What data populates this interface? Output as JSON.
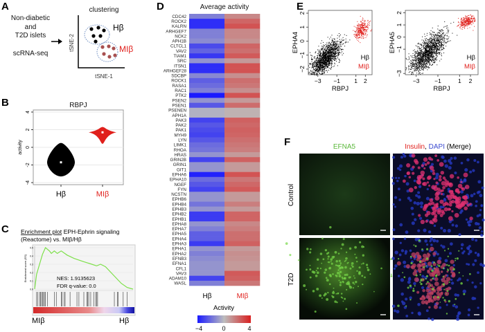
{
  "panels": {
    "A": "A",
    "B": "B",
    "C": "C",
    "D": "D",
    "E": "E",
    "F": "F"
  },
  "colors": {
    "hbeta": "#000000",
    "mibeta": "#e0201c",
    "low": "#1a1aff",
    "mid": "#bdbdbd",
    "high": "#d93030",
    "es_line": "#7de04a"
  },
  "panelA": {
    "input_text_1": "Non-diabetic",
    "input_text_2": "and",
    "input_text_3": "T2D islets",
    "method": "scRNA-seq",
    "title": "clustering",
    "xlabel": "tSNE-1",
    "ylabel": "tSNE-2",
    "cluster_1": "Hβ",
    "cluster_2": "MIβ"
  },
  "chart_data": [
    {
      "id": "B",
      "type": "violin",
      "title": "RBPJ",
      "ylabel": "activity",
      "categories": [
        "Hβ",
        "MIβ"
      ],
      "ylim": [
        -4,
        4
      ],
      "yticks": [
        "-4",
        "-2",
        "0",
        "2",
        "4"
      ],
      "grid": true,
      "violins": [
        {
          "name": "Hβ",
          "min": -3.3,
          "max": 0.5,
          "median": -1.7
        },
        {
          "name": "MIβ",
          "min": 0.4,
          "max": 2.3,
          "median": 1.7
        }
      ]
    },
    {
      "id": "C",
      "type": "line",
      "title_underlined": "Enrichment plot",
      "title_rest": ": EPH-Ephrin signaling",
      "title_line2": "(Reactome) vs. MIβ/Hβ",
      "ylabel": "Enrichment score (ES)",
      "yticks": [
        "0.0",
        "0.1",
        "0.2",
        "0.3",
        "0.4",
        "0.5"
      ],
      "ylim": [
        0,
        0.5
      ],
      "x_left_label": "MIβ",
      "x_right_label": "Hβ",
      "nes": "NES: 1.9135623",
      "fdr": "FDR q-value: 0.0",
      "es_curve": [
        [
          0,
          0
        ],
        [
          0.02,
          0.18
        ],
        [
          0.05,
          0.3
        ],
        [
          0.08,
          0.42
        ],
        [
          0.11,
          0.5
        ],
        [
          0.15,
          0.46
        ],
        [
          0.17,
          0.43
        ],
        [
          0.2,
          0.46
        ],
        [
          0.23,
          0.43
        ],
        [
          0.27,
          0.46
        ],
        [
          0.33,
          0.41
        ],
        [
          0.4,
          0.37
        ],
        [
          0.5,
          0.33
        ],
        [
          0.58,
          0.3
        ],
        [
          0.63,
          0.28
        ],
        [
          0.67,
          0.3
        ],
        [
          0.72,
          0.27
        ],
        [
          0.8,
          0.17
        ],
        [
          0.88,
          0.07
        ],
        [
          0.94,
          0.02
        ],
        [
          1,
          0
        ]
      ],
      "hits": [
        0.02,
        0.03,
        0.05,
        0.06,
        0.07,
        0.08,
        0.09,
        0.1,
        0.11,
        0.13,
        0.2,
        0.22,
        0.27,
        0.28,
        0.3,
        0.31,
        0.36,
        0.43,
        0.45,
        0.5,
        0.53,
        0.54,
        0.55,
        0.57,
        0.6,
        0.62,
        0.63,
        0.64,
        0.81,
        0.84,
        0.85,
        0.9,
        0.94
      ]
    },
    {
      "id": "D",
      "type": "heatmap",
      "title": "Average activity",
      "columns": [
        "Hβ",
        "MIβ"
      ],
      "legend_title": "Activity",
      "legend_ticks": [
        "−4",
        "0",
        "4"
      ],
      "range": [
        -4,
        4
      ],
      "rows": [
        "CDC42",
        "ROCK2",
        "KALRN",
        "ARHGEF7",
        "NCK2",
        "APH1B",
        "CLTCL1",
        "VAV2",
        "TIAM1",
        "SRC",
        "ITSN1",
        "ARHGEF28",
        "SDCBP",
        "ROCK1",
        "RASA1",
        "RAC1",
        "PTK2",
        "PSEN2",
        "PSEN1",
        "PSENEN",
        "APH1A",
        "PAK3",
        "PAK2",
        "PAK1",
        "MYH9",
        "LYN",
        "LIMK1",
        "RHOA",
        "HRAS",
        "GRIN2B",
        "GRIN1",
        "GIT1",
        "EPHA6",
        "EPHA10",
        "NGEF",
        "FYN",
        "NCSTN",
        "EPHB6",
        "EPHB4",
        "EPHB3",
        "EPHB2",
        "EPHB1",
        "EPHA8",
        "EPHA7",
        "EPHA5",
        "EPHA4",
        "EPHA3",
        "EPHA1",
        "EPHA2",
        "EFNB3",
        "EFNA1",
        "CFL1",
        "VAV3",
        "ADAM10",
        "WASL"
      ],
      "values": [
        [
          -1.5,
          1.5
        ],
        [
          -3.5,
          2.5
        ],
        [
          -3.5,
          3
        ],
        [
          -1.5,
          1.5
        ],
        [
          -1.5,
          1.5
        ],
        [
          -1.2,
          1.2
        ],
        [
          -2.8,
          2.5
        ],
        [
          -2.2,
          2.2
        ],
        [
          -3.3,
          2.8
        ],
        [
          -1,
          1
        ],
        [
          -3.5,
          3
        ],
        [
          -3.5,
          3
        ],
        [
          -1.3,
          1.3
        ],
        [
          -2.3,
          2.2
        ],
        [
          -2,
          2
        ],
        [
          -1.5,
          1.3
        ],
        [
          -4,
          3
        ],
        [
          -1,
          1
        ],
        [
          -2.5,
          2.3
        ],
        [
          -0.3,
          0.3
        ],
        [
          -0.3,
          0.3
        ],
        [
          -3,
          2.6
        ],
        [
          -2.5,
          2.4
        ],
        [
          -2.8,
          2.6
        ],
        [
          -3,
          2.5
        ],
        [
          -2.5,
          2.2
        ],
        [
          -2,
          2
        ],
        [
          -1.8,
          1.8
        ],
        [
          -1,
          1
        ],
        [
          -3,
          2.6
        ],
        [
          -1,
          1
        ],
        [
          -1,
          1
        ],
        [
          -3.8,
          3
        ],
        [
          -2,
          2
        ],
        [
          -2.5,
          2.4
        ],
        [
          -3,
          2.8
        ],
        [
          -1,
          1
        ],
        [
          -1,
          1
        ],
        [
          -1.8,
          1.8
        ],
        [
          -1,
          1
        ],
        [
          -3.2,
          2.5
        ],
        [
          -3.2,
          2.5
        ],
        [
          -1,
          1.5
        ],
        [
          -1.5,
          1.8
        ],
        [
          -2.3,
          2.2
        ],
        [
          -2.3,
          2.2
        ],
        [
          -3.2,
          2.6
        ],
        [
          -1,
          1
        ],
        [
          -1.5,
          1.3
        ],
        [
          -1.2,
          1.2
        ],
        [
          -1,
          1
        ],
        [
          -1,
          1
        ],
        [
          -1,
          2.8
        ],
        [
          -3,
          2.6
        ],
        [
          -1.5,
          2
        ]
      ]
    },
    {
      "id": "E1",
      "type": "scatter",
      "xlabel": "RBPJ",
      "ylabel": "EPHA4",
      "xticks": [
        "−3",
        "−1",
        "1",
        "2"
      ],
      "yticks": [
        "−2",
        "−1",
        "0",
        "1",
        "2"
      ],
      "xlim": [
        -4,
        2.7
      ],
      "ylim": [
        -2.4,
        2.2
      ],
      "legend": [
        "Hβ",
        "MIβ"
      ],
      "clusters": [
        {
          "name": "Hβ",
          "center": [
            -2.2,
            -1.2
          ],
          "sd": [
            0.8,
            0.45
          ],
          "slope": 0.55,
          "n": 1500
        },
        {
          "name": "MIβ",
          "center": [
            1.6,
            0.85
          ],
          "sd": [
            0.35,
            0.3
          ],
          "slope": 0.3,
          "n": 300
        }
      ]
    },
    {
      "id": "E2",
      "type": "scatter",
      "xlabel": "RBPJ",
      "ylabel": "EPHA5",
      "xticks": [
        "−3",
        "−1",
        "1",
        "2"
      ],
      "yticks": [
        "−3",
        "−1",
        "0",
        "1",
        "2"
      ],
      "xlim": [
        -4,
        2.7
      ],
      "ylim": [
        -3.1,
        2.2
      ],
      "legend": [
        "Hβ",
        "MIβ"
      ],
      "clusters": [
        {
          "name": "Hβ",
          "center": [
            -2.0,
            -1.3
          ],
          "sd": [
            0.8,
            0.6
          ],
          "slope": 0.75,
          "n": 1500
        },
        {
          "name": "MIβ",
          "center": [
            1.6,
            1.3
          ],
          "sd": [
            0.35,
            0.22
          ],
          "slope": 0.2,
          "n": 300
        }
      ]
    }
  ],
  "panelF": {
    "col1_label": "EFNA5",
    "col2_label_insulin": "Insulin",
    "col2_label_sep": ", ",
    "col2_label_dapi": "DAPI",
    "col2_label_merge": " (Merge)",
    "row1_label": "Control",
    "row2_label": "T2D"
  }
}
